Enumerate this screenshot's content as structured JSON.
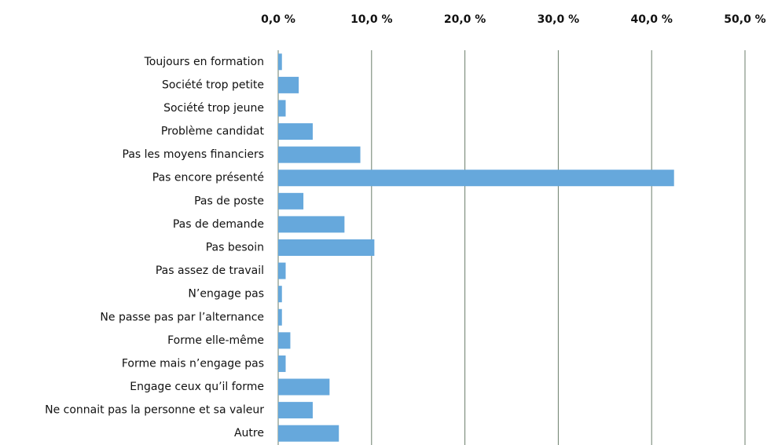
{
  "chart_data": {
    "type": "bar",
    "orientation": "horizontal",
    "categories": [
      "Toujours en formation",
      "Société trop petite",
      "Société trop jeune",
      "Problème candidat",
      "Pas les moyens financiers",
      "Pas encore présenté",
      "Pas de poste",
      "Pas de demande",
      "Pas besoin",
      "Pas assez de travail",
      "N’engage pas",
      "Ne passe pas par l’alternance",
      "Forme elle-même",
      "Forme mais n’engage pas",
      "Engage ceux qu’il forme",
      "Ne connait pas la personne et sa valeur",
      "Autre"
    ],
    "values": [
      0.4,
      2.2,
      0.8,
      3.7,
      8.8,
      42.4,
      2.7,
      7.1,
      10.3,
      0.8,
      0.4,
      0.4,
      1.3,
      0.8,
      5.5,
      3.7,
      6.5
    ],
    "color": "#66a8dc",
    "xlim": [
      0,
      50
    ],
    "xticks": [
      {
        "value": 0,
        "label": "0,0 %"
      },
      {
        "value": 10,
        "label": "10,0 %"
      },
      {
        "value": 20,
        "label": "20,0 %"
      },
      {
        "value": 30,
        "label": "30,0 %"
      },
      {
        "value": 40,
        "label": "40,0 %"
      },
      {
        "value": 50,
        "label": "50,0 %"
      }
    ],
    "grid": true
  }
}
